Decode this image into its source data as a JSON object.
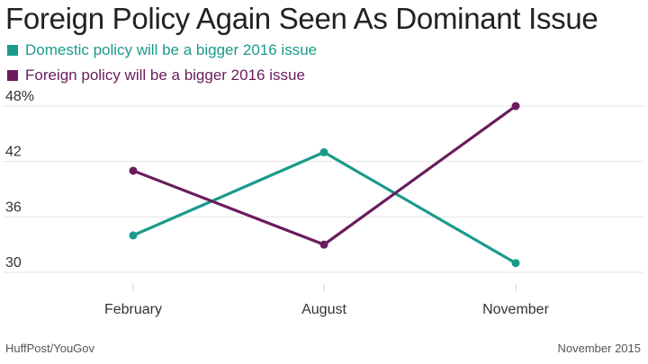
{
  "title": "Foreign Policy Again Seen As Dominant Issue",
  "source": "HuffPost/YouGov",
  "date": "November 2015",
  "colors": {
    "domestic": "#1a9a8a",
    "foreign": "#6a1b5e"
  },
  "chart_data": {
    "type": "line",
    "title": "Foreign Policy Again Seen As Dominant Issue",
    "categories": [
      "February",
      "August",
      "November"
    ],
    "series": [
      {
        "name": "Domestic policy will be a bigger 2016 issue",
        "values": [
          34,
          43,
          31
        ]
      },
      {
        "name": "Foreign policy will be a bigger 2016 issue",
        "values": [
          41,
          33,
          48
        ]
      }
    ],
    "y_ticks": [
      "30",
      "36",
      "42",
      "48%"
    ],
    "y_tick_values": [
      30,
      36,
      42,
      48
    ],
    "ylim": [
      30,
      48
    ],
    "xlabel": "",
    "ylabel": "",
    "grid": true,
    "legend_position": "top-left"
  }
}
